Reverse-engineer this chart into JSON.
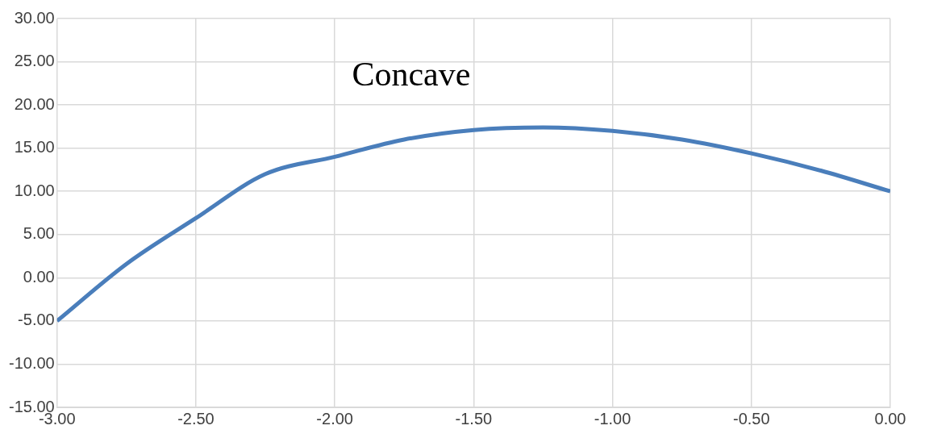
{
  "chart_data": {
    "type": "line",
    "annotations": [
      "Concave"
    ],
    "x": [
      -3,
      -2.75,
      -2.5,
      -2.25,
      -2,
      -1.75,
      -1.5,
      -1.25,
      -1,
      -0.75,
      -0.5,
      -0.25,
      0
    ],
    "series": [
      {
        "color": "#4a7ebb",
        "values": [
          -5,
          1.6,
          6.9,
          12,
          14,
          16,
          17.1,
          17.4,
          17,
          16,
          14.4,
          12.4,
          10
        ]
      }
    ],
    "xlim": [
      -3,
      0
    ],
    "xticks": [
      {
        "value": -3,
        "label": "-3.00"
      },
      {
        "value": -2.5,
        "label": "-2.50"
      },
      {
        "value": -2,
        "label": "-2.00"
      },
      {
        "value": -1.5,
        "label": "-1.50"
      },
      {
        "value": -1,
        "label": "-1.00"
      },
      {
        "value": -0.5,
        "label": "-0.50"
      },
      {
        "value": 0,
        "label": "0.00"
      }
    ],
    "ylim": [
      -15,
      30
    ],
    "yticks": [
      {
        "value": -15,
        "label": "-15.00"
      },
      {
        "value": -10,
        "label": "-10.00"
      },
      {
        "value": -5,
        "label": "-5.00"
      },
      {
        "value": 0,
        "label": "0.00"
      },
      {
        "value": 5,
        "label": "5.00"
      },
      {
        "value": 10,
        "label": "10.00"
      },
      {
        "value": 15,
        "label": "15.00"
      },
      {
        "value": 20,
        "label": "20.00"
      },
      {
        "value": 25,
        "label": "25.00"
      },
      {
        "value": 30,
        "label": "30.00"
      }
    ],
    "grid": true,
    "marker": "none",
    "line_style": "solid"
  }
}
